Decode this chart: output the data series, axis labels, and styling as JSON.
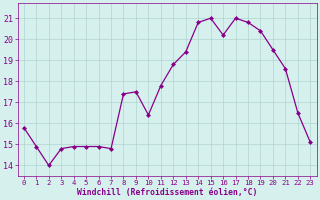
{
  "x": [
    0,
    1,
    2,
    3,
    4,
    5,
    6,
    7,
    8,
    9,
    10,
    11,
    12,
    13,
    14,
    15,
    16,
    17,
    18,
    19,
    20,
    21,
    22,
    23
  ],
  "y": [
    15.8,
    14.9,
    14.0,
    14.8,
    14.9,
    14.9,
    14.9,
    14.8,
    17.4,
    17.5,
    16.4,
    17.8,
    18.8,
    19.4,
    20.8,
    21.0,
    20.2,
    21.0,
    20.8,
    20.4,
    19.5,
    18.6,
    16.5,
    15.1
  ],
  "line_color": "#880088",
  "marker": "D",
  "marker_size": 2.0,
  "bg_color": "#d6f0ee",
  "grid_color": "#b0d4d0",
  "ylabel_ticks": [
    14,
    15,
    16,
    17,
    18,
    19,
    20,
    21
  ],
  "xlabel_ticks": [
    0,
    1,
    2,
    3,
    4,
    5,
    6,
    7,
    8,
    9,
    10,
    11,
    12,
    13,
    14,
    15,
    16,
    17,
    18,
    19,
    20,
    21,
    22,
    23
  ],
  "ylim": [
    13.5,
    21.7
  ],
  "xlim": [
    -0.5,
    23.5
  ],
  "xlabel": "Windchill (Refroidissement éolien,°C)",
  "tick_label_color": "#880088",
  "axis_color": "#880088",
  "xlabel_fontsize": 5.8,
  "ytick_fontsize": 6.0,
  "xtick_fontsize": 5.2,
  "linewidth": 0.9
}
